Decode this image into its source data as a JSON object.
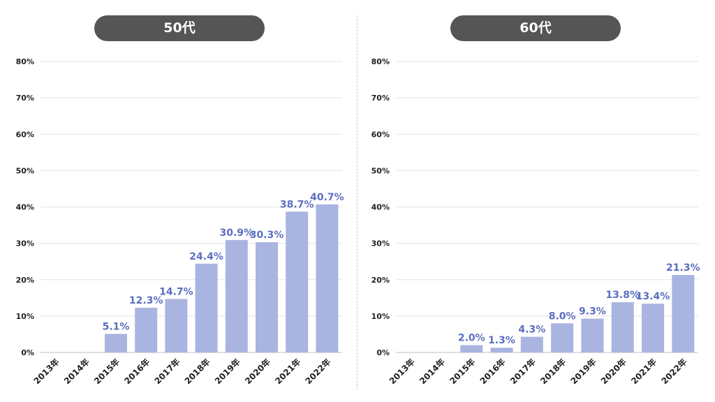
{
  "chart_data": [
    {
      "type": "bar",
      "title": "50代",
      "categories": [
        "2013年",
        "2014年",
        "2015年",
        "2016年",
        "2017年",
        "2018年",
        "2019年",
        "2020年",
        "2021年",
        "2022年"
      ],
      "values": [
        null,
        null,
        5.1,
        12.3,
        14.7,
        24.4,
        30.9,
        30.3,
        38.7,
        40.7
      ],
      "data_labels": [
        "",
        "",
        "5.1%",
        "12.3%",
        "14.7%",
        "24.4%",
        "30.9%",
        "30.3%",
        "38.7%",
        "40.7%"
      ],
      "yticks": [
        "0%",
        "10%",
        "20%",
        "30%",
        "40%",
        "50%",
        "60%",
        "70%",
        "80%"
      ],
      "ylim": [
        0,
        80
      ],
      "xlabel": "",
      "ylabel": "",
      "grid": true,
      "bar_color": "#a9b4e0",
      "label_color": "#5b6fbf"
    },
    {
      "type": "bar",
      "title": "60代",
      "categories": [
        "2013年",
        "2014年",
        "2015年",
        "2016年",
        "2017年",
        "2018年",
        "2019年",
        "2020年",
        "2021年",
        "2022年"
      ],
      "values": [
        null,
        null,
        2.0,
        1.3,
        4.3,
        8.0,
        9.3,
        13.8,
        13.4,
        21.3
      ],
      "data_labels": [
        "",
        "",
        "2.0%",
        "1.3%",
        "4.3%",
        "8.0%",
        "9.3%",
        "13.8%",
        "13.4%",
        "21.3%"
      ],
      "yticks": [
        "0%",
        "10%",
        "20%",
        "30%",
        "40%",
        "50%",
        "60%",
        "70%",
        "80%"
      ],
      "ylim": [
        0,
        80
      ],
      "xlabel": "",
      "ylabel": "",
      "grid": true,
      "bar_color": "#a9b4e0",
      "label_color": "#5b6fbf"
    }
  ]
}
